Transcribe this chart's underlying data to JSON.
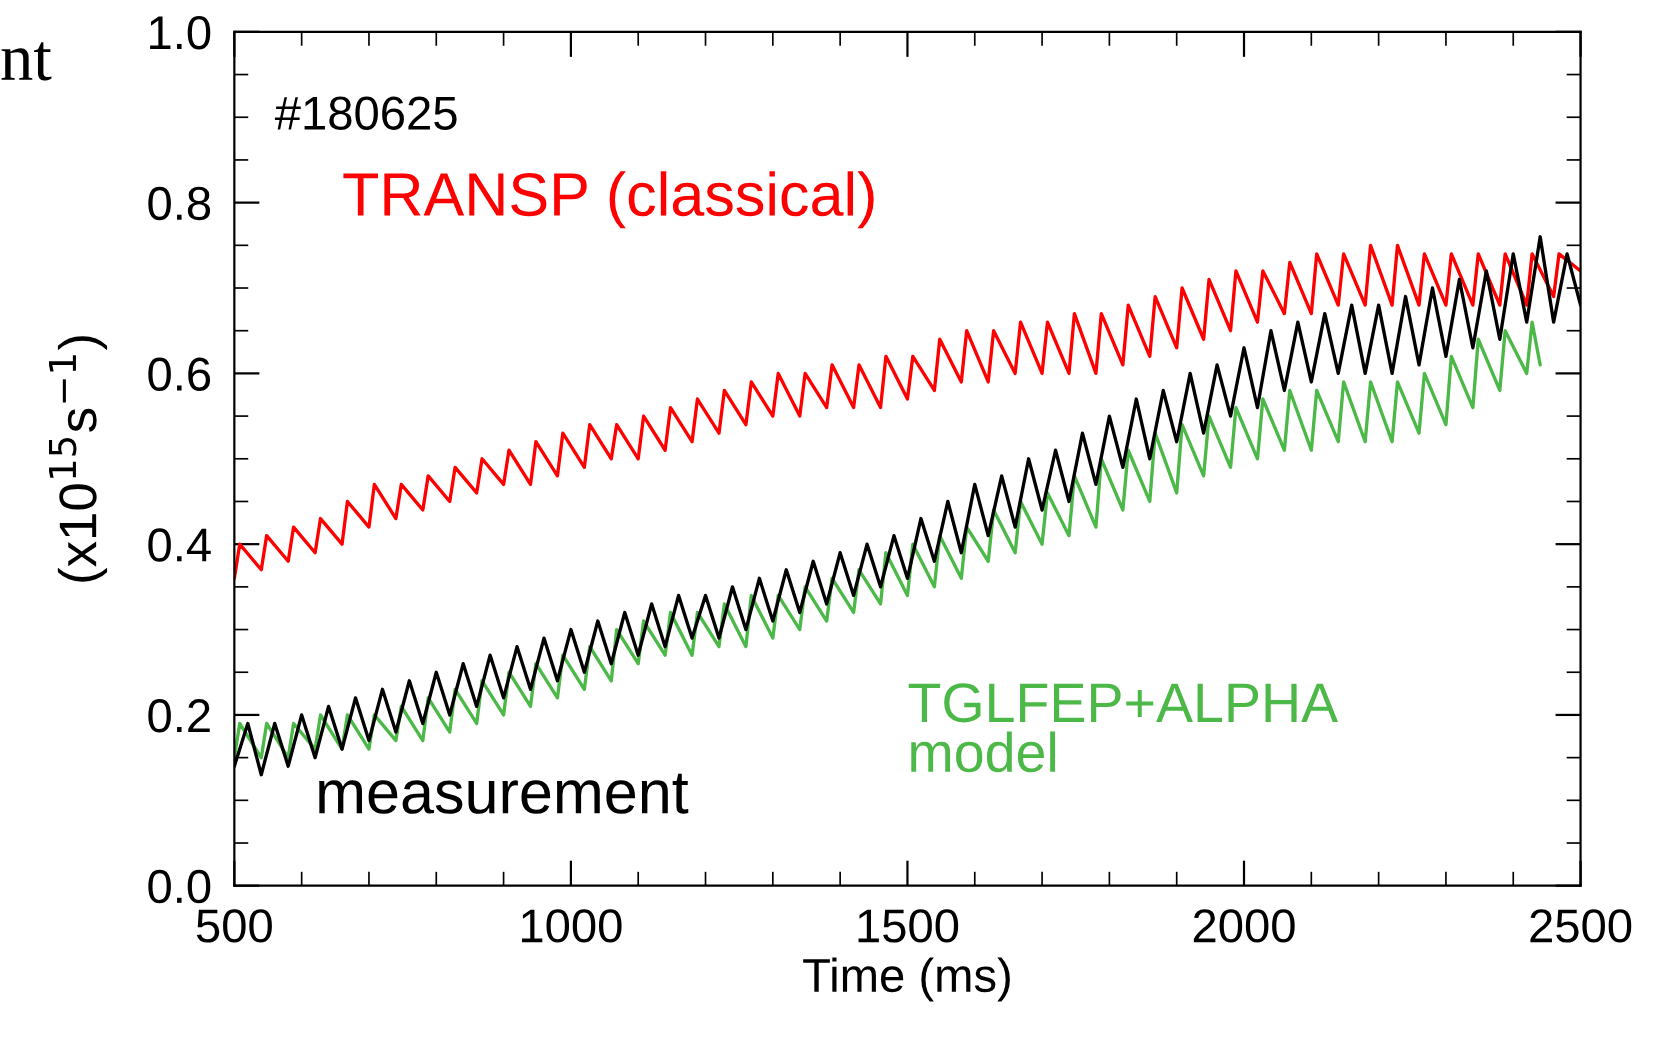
{
  "chart_data": {
    "type": "line",
    "xlabel": "Time (ms)",
    "ylabel": "(x10$^{15}$s$^{−1}$)",
    "xlim": [
      500,
      2500
    ],
    "xticks": [
      500,
      1000,
      1500,
      2000,
      2500
    ],
    "ylim": [
      0.0,
      1.0
    ],
    "yticks": [
      {
        "value": 0.0,
        "label": "0.0"
      },
      {
        "value": 0.2,
        "label": "0.2"
      },
      {
        "value": 0.4,
        "label": "0.4"
      },
      {
        "value": 0.6,
        "label": "0.6"
      },
      {
        "value": 0.8,
        "label": "0.8"
      },
      {
        "value": 1.0,
        "label": "1.0"
      }
    ],
    "grid": false,
    "legend": false,
    "annotations": [
      "nt",
      "#180625"
    ],
    "series": [
      {
        "name": "TRANSP (classical)",
        "color": "#ff0000",
        "x": [
          500,
          508,
          540,
          548,
          580,
          588,
          620,
          628,
          660,
          668,
          700,
          708,
          740,
          748,
          780,
          788,
          820,
          828,
          860,
          868,
          900,
          908,
          940,
          948,
          980,
          988,
          1020,
          1028,
          1060,
          1068,
          1100,
          1108,
          1140,
          1148,
          1180,
          1188,
          1220,
          1228,
          1260,
          1268,
          1300,
          1308,
          1340,
          1348,
          1380,
          1388,
          1420,
          1428,
          1460,
          1468,
          1500,
          1508,
          1540,
          1548,
          1580,
          1588,
          1620,
          1628,
          1660,
          1668,
          1700,
          1708,
          1740,
          1748,
          1780,
          1788,
          1820,
          1828,
          1860,
          1868,
          1900,
          1908,
          1940,
          1948,
          1980,
          1988,
          2020,
          2028,
          2060,
          2068,
          2100,
          2108,
          2140,
          2148,
          2180,
          2188,
          2220,
          2228,
          2260,
          2268,
          2300,
          2308,
          2340,
          2348,
          2380,
          2388,
          2420,
          2428,
          2460,
          2468,
          2500
        ],
        "values": [
          0.36,
          0.4,
          0.37,
          0.41,
          0.38,
          0.42,
          0.39,
          0.43,
          0.4,
          0.45,
          0.42,
          0.47,
          0.43,
          0.47,
          0.44,
          0.48,
          0.45,
          0.49,
          0.46,
          0.5,
          0.47,
          0.51,
          0.47,
          0.52,
          0.48,
          0.53,
          0.49,
          0.54,
          0.5,
          0.54,
          0.5,
          0.55,
          0.51,
          0.56,
          0.52,
          0.57,
          0.53,
          0.58,
          0.54,
          0.59,
          0.55,
          0.6,
          0.55,
          0.6,
          0.56,
          0.61,
          0.56,
          0.61,
          0.56,
          0.62,
          0.57,
          0.62,
          0.58,
          0.64,
          0.59,
          0.65,
          0.59,
          0.65,
          0.6,
          0.66,
          0.6,
          0.66,
          0.6,
          0.67,
          0.6,
          0.67,
          0.61,
          0.68,
          0.62,
          0.69,
          0.63,
          0.7,
          0.64,
          0.71,
          0.65,
          0.72,
          0.66,
          0.72,
          0.67,
          0.73,
          0.67,
          0.74,
          0.68,
          0.74,
          0.68,
          0.75,
          0.68,
          0.75,
          0.68,
          0.74,
          0.68,
          0.74,
          0.68,
          0.74,
          0.68,
          0.74,
          0.68,
          0.74,
          0.69,
          0.74,
          0.72
        ]
      },
      {
        "name": "measurement",
        "color": "#000000",
        "x": [
          500,
          520,
          540,
          560,
          580,
          600,
          620,
          640,
          660,
          680,
          700,
          720,
          740,
          760,
          780,
          800,
          820,
          840,
          860,
          880,
          900,
          920,
          940,
          960,
          980,
          1000,
          1020,
          1040,
          1060,
          1080,
          1100,
          1120,
          1140,
          1160,
          1180,
          1200,
          1220,
          1240,
          1260,
          1280,
          1300,
          1320,
          1340,
          1360,
          1380,
          1400,
          1420,
          1440,
          1460,
          1480,
          1500,
          1520,
          1540,
          1560,
          1580,
          1600,
          1620,
          1640,
          1660,
          1680,
          1700,
          1720,
          1740,
          1760,
          1780,
          1800,
          1820,
          1840,
          1860,
          1880,
          1900,
          1920,
          1940,
          1960,
          1980,
          2000,
          2020,
          2040,
          2060,
          2080,
          2100,
          2120,
          2140,
          2160,
          2180,
          2200,
          2220,
          2240,
          2260,
          2280,
          2300,
          2320,
          2340,
          2360,
          2380,
          2400,
          2420,
          2440,
          2460,
          2480,
          2500
        ],
        "values": [
          0.14,
          0.19,
          0.13,
          0.19,
          0.14,
          0.2,
          0.15,
          0.21,
          0.16,
          0.22,
          0.17,
          0.23,
          0.18,
          0.24,
          0.19,
          0.25,
          0.2,
          0.26,
          0.21,
          0.27,
          0.22,
          0.28,
          0.23,
          0.29,
          0.24,
          0.3,
          0.25,
          0.31,
          0.26,
          0.32,
          0.27,
          0.33,
          0.28,
          0.34,
          0.29,
          0.34,
          0.29,
          0.35,
          0.3,
          0.36,
          0.31,
          0.37,
          0.32,
          0.38,
          0.33,
          0.39,
          0.34,
          0.4,
          0.35,
          0.41,
          0.36,
          0.43,
          0.38,
          0.45,
          0.39,
          0.47,
          0.41,
          0.48,
          0.42,
          0.5,
          0.44,
          0.51,
          0.45,
          0.53,
          0.47,
          0.55,
          0.49,
          0.57,
          0.5,
          0.58,
          0.52,
          0.6,
          0.53,
          0.61,
          0.55,
          0.63,
          0.56,
          0.65,
          0.58,
          0.66,
          0.59,
          0.67,
          0.6,
          0.68,
          0.6,
          0.68,
          0.6,
          0.69,
          0.61,
          0.7,
          0.62,
          0.71,
          0.63,
          0.72,
          0.64,
          0.74,
          0.66,
          0.76,
          0.66,
          0.74,
          0.68
        ]
      },
      {
        "name": "TGLFEP+ALPHA\nmodel",
        "color": "#4cb848",
        "x": [
          500,
          508,
          540,
          548,
          580,
          588,
          620,
          628,
          660,
          668,
          700,
          708,
          740,
          748,
          780,
          788,
          820,
          828,
          860,
          868,
          900,
          908,
          940,
          948,
          980,
          988,
          1020,
          1028,
          1060,
          1068,
          1100,
          1108,
          1140,
          1148,
          1180,
          1188,
          1220,
          1228,
          1260,
          1268,
          1300,
          1308,
          1340,
          1348,
          1380,
          1388,
          1420,
          1428,
          1460,
          1468,
          1500,
          1508,
          1540,
          1548,
          1580,
          1588,
          1620,
          1628,
          1660,
          1668,
          1700,
          1708,
          1740,
          1748,
          1780,
          1788,
          1820,
          1828,
          1860,
          1868,
          1900,
          1908,
          1940,
          1948,
          1980,
          1988,
          2020,
          2028,
          2060,
          2068,
          2100,
          2108,
          2140,
          2148,
          2180,
          2188,
          2220,
          2228,
          2260,
          2268,
          2300,
          2308,
          2340,
          2348,
          2380,
          2388,
          2420,
          2428,
          2440
        ],
        "values": [
          0.15,
          0.19,
          0.15,
          0.19,
          0.15,
          0.19,
          0.16,
          0.2,
          0.16,
          0.2,
          0.16,
          0.2,
          0.17,
          0.21,
          0.17,
          0.22,
          0.18,
          0.23,
          0.19,
          0.24,
          0.2,
          0.25,
          0.21,
          0.26,
          0.22,
          0.27,
          0.23,
          0.28,
          0.24,
          0.3,
          0.26,
          0.31,
          0.27,
          0.32,
          0.27,
          0.32,
          0.28,
          0.33,
          0.28,
          0.34,
          0.29,
          0.34,
          0.3,
          0.35,
          0.31,
          0.36,
          0.32,
          0.37,
          0.33,
          0.39,
          0.34,
          0.4,
          0.35,
          0.41,
          0.36,
          0.42,
          0.38,
          0.44,
          0.39,
          0.45,
          0.4,
          0.46,
          0.41,
          0.48,
          0.42,
          0.5,
          0.44,
          0.51,
          0.45,
          0.53,
          0.46,
          0.54,
          0.48,
          0.55,
          0.49,
          0.56,
          0.5,
          0.57,
          0.51,
          0.58,
          0.51,
          0.58,
          0.52,
          0.59,
          0.52,
          0.59,
          0.52,
          0.59,
          0.53,
          0.6,
          0.54,
          0.62,
          0.56,
          0.64,
          0.58,
          0.65,
          0.6,
          0.66,
          0.61
        ]
      }
    ]
  }
}
